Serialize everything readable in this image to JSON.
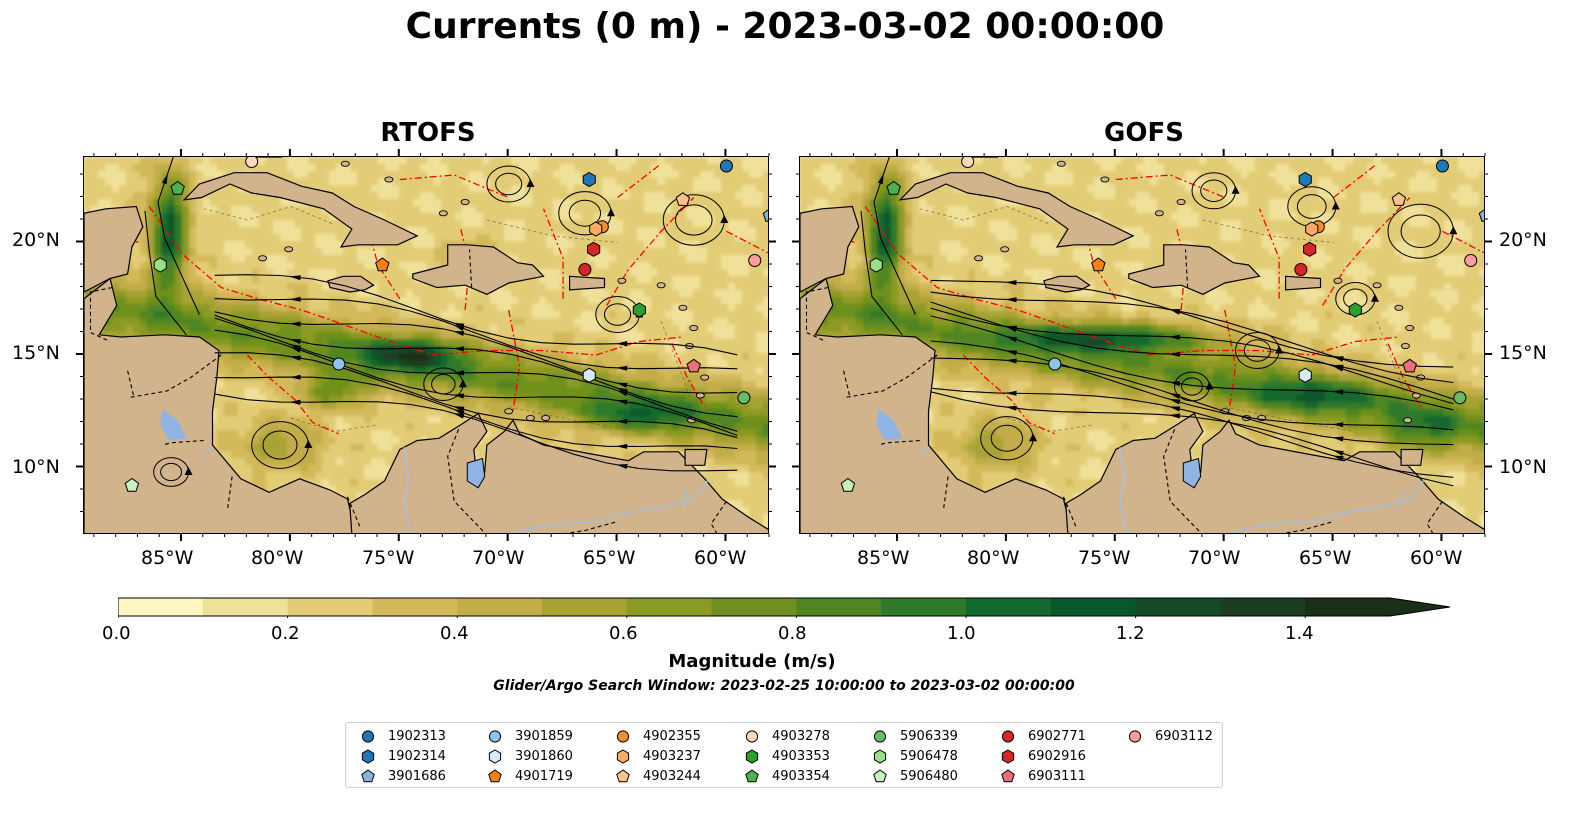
{
  "title": "Currents (0 m) - 2023-03-02 00:00:00",
  "panels": [
    {
      "key": "rtofs",
      "title": "RTOFS"
    },
    {
      "key": "gofs",
      "title": "GOFS"
    }
  ],
  "map_extent": {
    "lon_min": -89.5,
    "lon_max": -58.0,
    "lat_min": 7.0,
    "lat_max": 23.8
  },
  "lon_ticks": [
    "85°W",
    "80°W",
    "75°W",
    "70°W",
    "65°W",
    "60°W"
  ],
  "lat_ticks": [
    "10°N",
    "15°N",
    "20°N"
  ],
  "colorbar": {
    "label": "Magnitude (m/s)",
    "ticks": [
      "0.0",
      "0.2",
      "0.4",
      "0.6",
      "0.8",
      "1.0",
      "1.2",
      "1.4"
    ],
    "min": 0.0,
    "max": 1.5,
    "extend": "max",
    "colors": [
      "#fdf6c0",
      "#f0e19a",
      "#e2cc76",
      "#d3b95a",
      "#c2ad48",
      "#a9a335",
      "#8b9a22",
      "#6f901e",
      "#4f8622",
      "#2f7a2a",
      "#12692e",
      "#08582a",
      "#154a26",
      "#1b3d20",
      "#1a2f18"
    ]
  },
  "subtitle": "Glider/Argo Search Window: 2023-02-25 10:00:00 to 2023-03-02 00:00:00",
  "colors": {
    "land": "#d2b48c",
    "eez": "#ff0000",
    "lakes": "#8fb4e3",
    "rivers": "#a6bfd9"
  },
  "floats": [
    {
      "id": "1902313",
      "marker": "circle",
      "color": "#1f77b4",
      "lon": -60.0,
      "lat": 23.4
    },
    {
      "id": "1902314",
      "marker": "hexagon",
      "color": "#1f77b4",
      "lon": -66.3,
      "lat": 22.8
    },
    {
      "id": "3901686",
      "marker": "pentagon",
      "color": "#87b3e0",
      "lon": -58.0,
      "lat": 21.2
    },
    {
      "id": "3901859",
      "marker": "circle",
      "color": "#8ec4ec",
      "lon": -77.8,
      "lat": 14.6
    },
    {
      "id": "3901860",
      "marker": "hexagon",
      "color": "#d5ebfb",
      "lon": -66.3,
      "lat": 14.1
    },
    {
      "id": "4901719",
      "marker": "pentagon",
      "color": "#ff7f0e",
      "lon": -75.8,
      "lat": 19.0
    },
    {
      "id": "4902355",
      "marker": "circle",
      "color": "#f28e2b",
      "lon": -65.7,
      "lat": 20.7
    },
    {
      "id": "4903237",
      "marker": "hexagon",
      "color": "#ffab66",
      "lon": -66.0,
      "lat": 20.6
    },
    {
      "id": "4903244",
      "marker": "pentagon",
      "color": "#ffc18a",
      "lon": -62.0,
      "lat": 21.9
    },
    {
      "id": "4903278",
      "marker": "circle",
      "color": "#fcd9bd",
      "lon": -81.8,
      "lat": 23.6
    },
    {
      "id": "4903353",
      "marker": "hexagon",
      "color": "#2ca02c",
      "lon": -64.0,
      "lat": 17.0
    },
    {
      "id": "4903354",
      "marker": "pentagon",
      "color": "#4fb04f",
      "lon": -85.2,
      "lat": 22.4
    },
    {
      "id": "5906339",
      "marker": "circle",
      "color": "#66bb66",
      "lon": -59.2,
      "lat": 13.1
    },
    {
      "id": "5906478",
      "marker": "hexagon",
      "color": "#98df8a",
      "lon": -86.0,
      "lat": 19.0
    },
    {
      "id": "5906480",
      "marker": "pentagon",
      "color": "#c7f0c0",
      "lon": -87.3,
      "lat": 9.2
    },
    {
      "id": "6902771",
      "marker": "circle",
      "color": "#d62728",
      "lon": -66.5,
      "lat": 18.8
    },
    {
      "id": "6902916",
      "marker": "hexagon",
      "color": "#d62728",
      "lon": -66.1,
      "lat": 19.7
    },
    {
      "id": "6903111",
      "marker": "pentagon",
      "color": "#e8707a",
      "lon": -61.5,
      "lat": 14.5
    },
    {
      "id": "6903112",
      "marker": "circle",
      "color": "#ff9c9c",
      "lon": -58.7,
      "lat": 19.2
    }
  ]
}
